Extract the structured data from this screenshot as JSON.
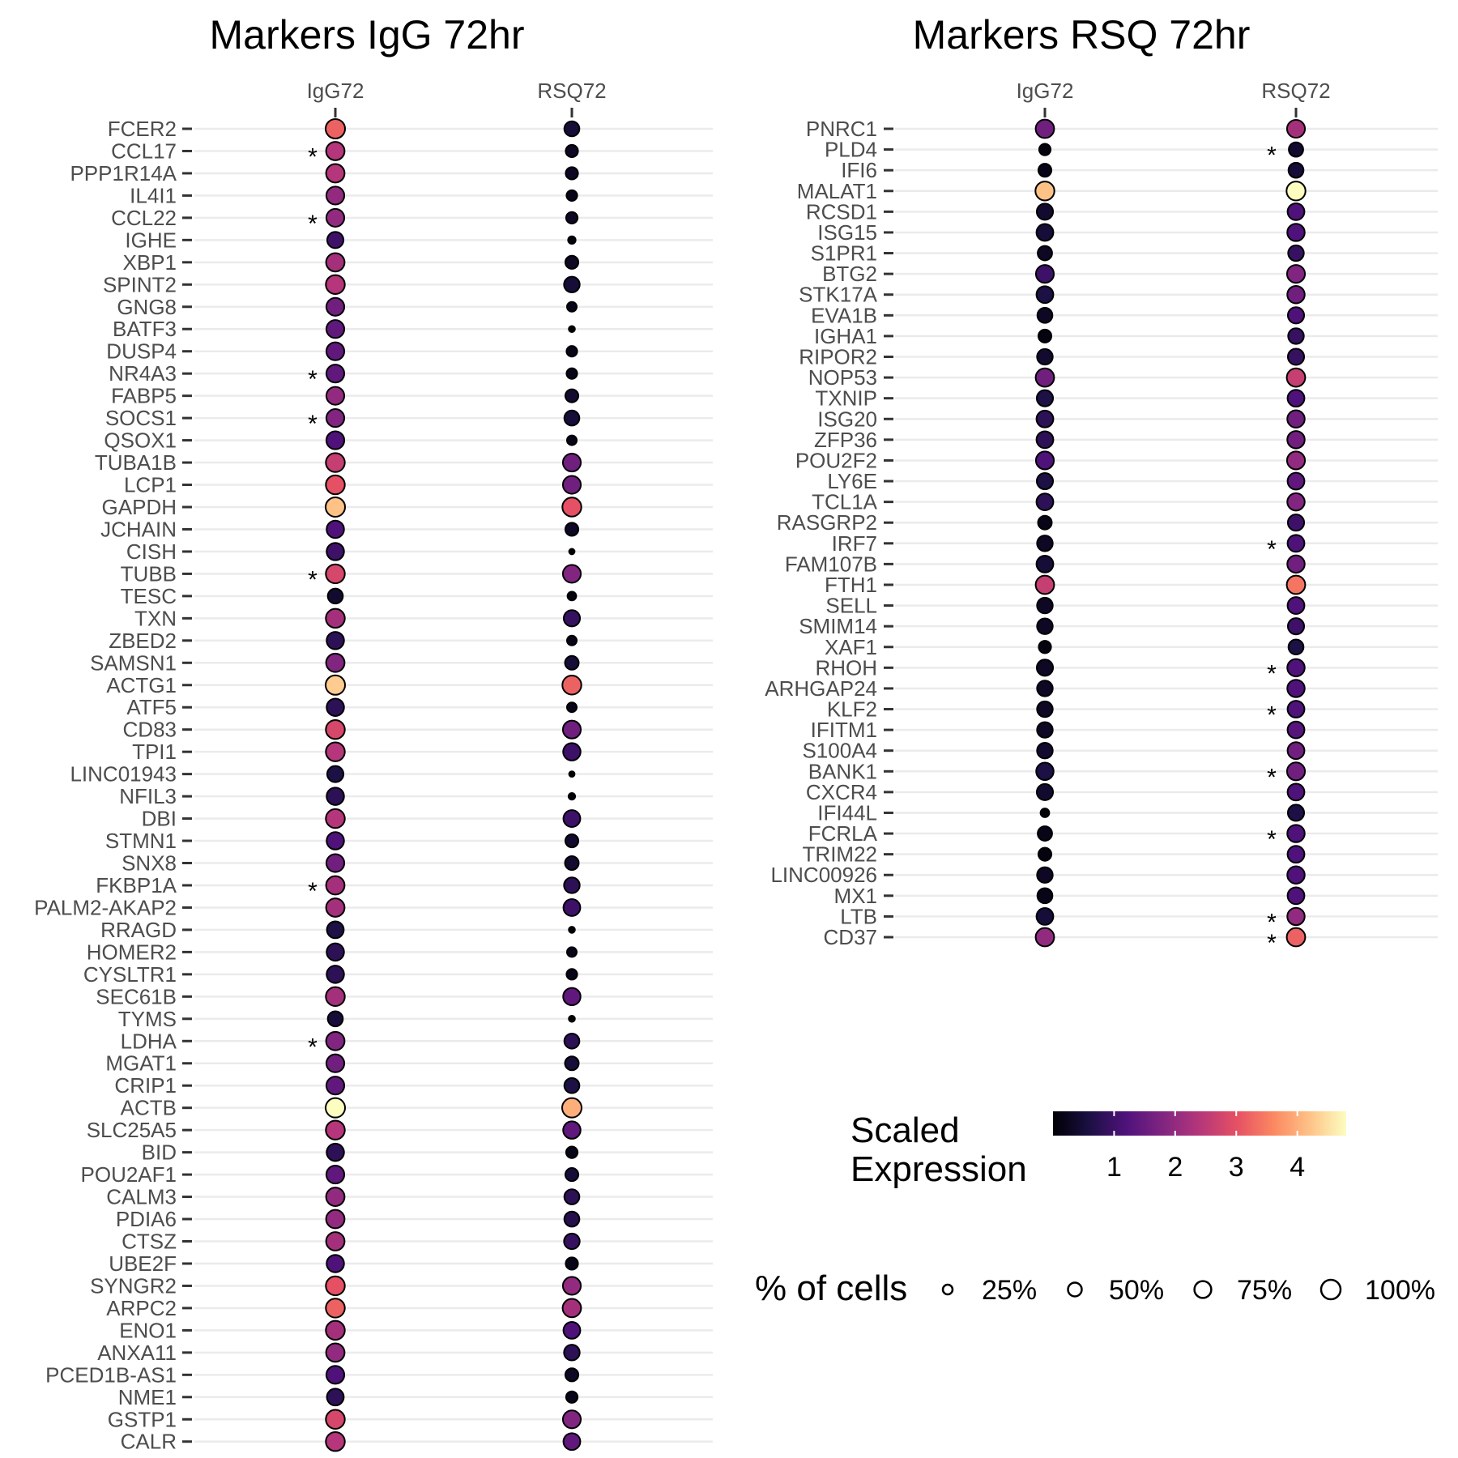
{
  "legend": {
    "color_title_line1": "Scaled",
    "color_title_line2": "Expression",
    "color_ticks": [
      1,
      2,
      3,
      4
    ],
    "color_range": [
      0,
      4.8
    ],
    "size_title": "% of cells",
    "size_labels": [
      "25%",
      "50%",
      "75%",
      "100%"
    ],
    "size_values": [
      25,
      50,
      75,
      100
    ],
    "palette": [
      "#000004",
      "#1c1044",
      "#4f127b",
      "#812581",
      "#b5367a",
      "#e55064",
      "#fb8761",
      "#fec287",
      "#fcfdbf"
    ]
  },
  "chart_data": [
    {
      "type": "dotplot",
      "title": "Markers IgG 72hr",
      "columns": [
        "IgG72",
        "RSQ72"
      ],
      "genes": [
        "FCER2",
        "CCL17",
        "PPP1R14A",
        "IL4I1",
        "CCL22",
        "IGHE",
        "XBP1",
        "SPINT2",
        "GNG8",
        "BATF3",
        "DUSP4",
        "NR4A3",
        "FABP5",
        "SOCS1",
        "QSOX1",
        "TUBA1B",
        "LCP1",
        "GAPDH",
        "JCHAIN",
        "CISH",
        "TUBB",
        "TESC",
        "TXN",
        "ZBED2",
        "SAMSN1",
        "ACTG1",
        "ATF5",
        "CD83",
        "TPI1",
        "LINC01943",
        "NFIL3",
        "DBI",
        "STMN1",
        "SNX8",
        "FKBP1A",
        "PALM2-AKAP2",
        "RRAGD",
        "HOMER2",
        "CYSLTR1",
        "SEC61B",
        "TYMS",
        "LDHA",
        "MGAT1",
        "CRIP1",
        "ACTB",
        "SLC25A5",
        "BID",
        "POU2AF1",
        "CALM3",
        "PDIA6",
        "CTSZ",
        "UBE2F",
        "SYNGR2",
        "ARPC2",
        "ENO1",
        "ANXA11",
        "PCED1B-AS1",
        "NME1",
        "GSTP1",
        "CALR"
      ],
      "expression": [
        [
          3.2,
          0.5
        ],
        [
          2.4,
          0.3
        ],
        [
          2.4,
          0.3
        ],
        [
          2.0,
          0.2
        ],
        [
          2.0,
          0.3
        ],
        [
          1.0,
          0.1
        ],
        [
          2.2,
          0.3
        ],
        [
          2.4,
          0.5
        ],
        [
          1.6,
          0.2
        ],
        [
          1.4,
          0.05
        ],
        [
          1.4,
          0.2
        ],
        [
          1.4,
          0.2
        ],
        [
          2.0,
          0.4
        ],
        [
          1.8,
          0.5
        ],
        [
          1.2,
          0.2
        ],
        [
          2.6,
          1.6
        ],
        [
          3.0,
          1.6
        ],
        [
          4.2,
          3.0
        ],
        [
          1.2,
          0.3
        ],
        [
          1.0,
          0.05
        ],
        [
          2.8,
          1.8
        ],
        [
          0.4,
          0.1
        ],
        [
          2.2,
          0.9
        ],
        [
          0.8,
          0.2
        ],
        [
          1.8,
          0.5
        ],
        [
          4.3,
          3.2
        ],
        [
          0.8,
          0.2
        ],
        [
          2.8,
          1.6
        ],
        [
          2.4,
          1.0
        ],
        [
          0.6,
          0.05
        ],
        [
          0.8,
          0.05
        ],
        [
          2.4,
          1.0
        ],
        [
          1.2,
          0.4
        ],
        [
          1.6,
          0.4
        ],
        [
          2.2,
          0.8
        ],
        [
          2.2,
          1.0
        ],
        [
          0.6,
          0.05
        ],
        [
          0.8,
          0.2
        ],
        [
          0.8,
          0.2
        ],
        [
          2.2,
          1.4
        ],
        [
          0.5,
          0.05
        ],
        [
          1.8,
          0.8
        ],
        [
          1.6,
          0.5
        ],
        [
          1.4,
          0.6
        ],
        [
          4.8,
          4.0
        ],
        [
          2.4,
          1.4
        ],
        [
          0.8,
          0.2
        ],
        [
          1.4,
          0.5
        ],
        [
          2.0,
          0.8
        ],
        [
          2.0,
          0.7
        ],
        [
          2.2,
          0.9
        ],
        [
          1.2,
          0.2
        ],
        [
          3.0,
          2.0
        ],
        [
          3.2,
          2.2
        ],
        [
          2.2,
          1.2
        ],
        [
          2.0,
          0.8
        ],
        [
          1.2,
          0.3
        ],
        [
          0.8,
          0.2
        ],
        [
          2.8,
          1.8
        ],
        [
          2.4,
          1.4
        ]
      ],
      "percent": [
        [
          100,
          60
        ],
        [
          90,
          40
        ],
        [
          90,
          40
        ],
        [
          85,
          30
        ],
        [
          85,
          35
        ],
        [
          70,
          15
        ],
        [
          90,
          45
        ],
        [
          95,
          65
        ],
        [
          85,
          25
        ],
        [
          85,
          10
        ],
        [
          85,
          30
        ],
        [
          85,
          30
        ],
        [
          85,
          45
        ],
        [
          85,
          60
        ],
        [
          85,
          25
        ],
        [
          95,
          85
        ],
        [
          95,
          85
        ],
        [
          100,
          95
        ],
        [
          80,
          45
        ],
        [
          80,
          8
        ],
        [
          95,
          85
        ],
        [
          60,
          20
        ],
        [
          95,
          70
        ],
        [
          80,
          25
        ],
        [
          90,
          50
        ],
        [
          100,
          95
        ],
        [
          80,
          25
        ],
        [
          95,
          85
        ],
        [
          95,
          80
        ],
        [
          70,
          8
        ],
        [
          80,
          12
        ],
        [
          95,
          75
        ],
        [
          80,
          45
        ],
        [
          85,
          50
        ],
        [
          90,
          65
        ],
        [
          90,
          75
        ],
        [
          75,
          10
        ],
        [
          80,
          25
        ],
        [
          80,
          30
        ],
        [
          95,
          80
        ],
        [
          60,
          10
        ],
        [
          90,
          60
        ],
        [
          85,
          50
        ],
        [
          85,
          60
        ],
        [
          100,
          100
        ],
        [
          95,
          80
        ],
        [
          80,
          35
        ],
        [
          85,
          45
        ],
        [
          90,
          60
        ],
        [
          90,
          60
        ],
        [
          90,
          65
        ],
        [
          80,
          40
        ],
        [
          95,
          85
        ],
        [
          95,
          90
        ],
        [
          95,
          75
        ],
        [
          90,
          65
        ],
        [
          85,
          45
        ],
        [
          75,
          35
        ],
        [
          95,
          85
        ],
        [
          95,
          75
        ]
      ],
      "significant": [
        [
          false,
          false
        ],
        [
          true,
          false
        ],
        [
          false,
          false
        ],
        [
          false,
          false
        ],
        [
          true,
          false
        ],
        [
          false,
          false
        ],
        [
          false,
          false
        ],
        [
          false,
          false
        ],
        [
          false,
          false
        ],
        [
          false,
          false
        ],
        [
          false,
          false
        ],
        [
          true,
          false
        ],
        [
          false,
          false
        ],
        [
          true,
          false
        ],
        [
          false,
          false
        ],
        [
          false,
          false
        ],
        [
          false,
          false
        ],
        [
          false,
          false
        ],
        [
          false,
          false
        ],
        [
          false,
          false
        ],
        [
          true,
          false
        ],
        [
          false,
          false
        ],
        [
          false,
          false
        ],
        [
          false,
          false
        ],
        [
          false,
          false
        ],
        [
          false,
          false
        ],
        [
          false,
          false
        ],
        [
          false,
          false
        ],
        [
          false,
          false
        ],
        [
          false,
          false
        ],
        [
          false,
          false
        ],
        [
          false,
          false
        ],
        [
          false,
          false
        ],
        [
          false,
          false
        ],
        [
          true,
          false
        ],
        [
          false,
          false
        ],
        [
          false,
          false
        ],
        [
          false,
          false
        ],
        [
          false,
          false
        ],
        [
          false,
          false
        ],
        [
          false,
          false
        ],
        [
          true,
          false
        ],
        [
          false,
          false
        ],
        [
          false,
          false
        ],
        [
          false,
          false
        ],
        [
          false,
          false
        ],
        [
          false,
          false
        ],
        [
          false,
          false
        ],
        [
          false,
          false
        ],
        [
          false,
          false
        ],
        [
          false,
          false
        ],
        [
          false,
          false
        ],
        [
          false,
          false
        ],
        [
          false,
          false
        ],
        [
          false,
          false
        ],
        [
          false,
          false
        ],
        [
          false,
          false
        ],
        [
          false,
          false
        ],
        [
          false,
          false
        ],
        [
          false,
          false
        ]
      ]
    },
    {
      "type": "dotplot",
      "title": "Markers RSQ 72hr",
      "columns": [
        "IgG72",
        "RSQ72"
      ],
      "genes": [
        "PNRC1",
        "PLD4",
        "IFI6",
        "MALAT1",
        "RCSD1",
        "ISG15",
        "S1PR1",
        "BTG2",
        "STK17A",
        "EVA1B",
        "IGHA1",
        "RIPOR2",
        "NOP53",
        "TXNIP",
        "ISG20",
        "ZFP36",
        "POU2F2",
        "LY6E",
        "TCL1A",
        "RASGRP2",
        "IRF7",
        "FAM107B",
        "FTH1",
        "SELL",
        "SMIM14",
        "XAF1",
        "RHOH",
        "ARHGAP24",
        "KLF2",
        "IFITM1",
        "S100A4",
        "BANK1",
        "CXCR4",
        "IFI44L",
        "FCRLA",
        "TRIM22",
        "LINC00926",
        "MX1",
        "LTB",
        "CD37"
      ],
      "expression": [
        [
          1.6,
          2.2
        ],
        [
          0.1,
          0.4
        ],
        [
          0.2,
          0.5
        ],
        [
          4.2,
          4.8
        ],
        [
          0.4,
          1.2
        ],
        [
          0.5,
          1.2
        ],
        [
          0.3,
          0.9
        ],
        [
          1.0,
          1.8
        ],
        [
          0.6,
          1.6
        ],
        [
          0.3,
          1.2
        ],
        [
          0.1,
          0.9
        ],
        [
          0.4,
          0.9
        ],
        [
          1.6,
          2.6
        ],
        [
          0.6,
          1.2
        ],
        [
          0.8,
          1.6
        ],
        [
          0.8,
          1.6
        ],
        [
          1.2,
          2.0
        ],
        [
          0.6,
          1.4
        ],
        [
          0.8,
          1.8
        ],
        [
          0.2,
          1.0
        ],
        [
          0.3,
          1.2
        ],
        [
          0.5,
          1.6
        ],
        [
          2.6,
          3.4
        ],
        [
          0.3,
          1.2
        ],
        [
          0.3,
          1.0
        ],
        [
          0.1,
          0.6
        ],
        [
          0.3,
          1.2
        ],
        [
          0.3,
          1.2
        ],
        [
          0.3,
          1.2
        ],
        [
          0.3,
          1.3
        ],
        [
          0.4,
          1.6
        ],
        [
          0.6,
          1.6
        ],
        [
          0.4,
          1.2
        ],
        [
          0.05,
          0.6
        ],
        [
          0.2,
          1.2
        ],
        [
          0.1,
          1.2
        ],
        [
          0.3,
          1.2
        ],
        [
          0.2,
          1.2
        ],
        [
          0.5,
          2.0
        ],
        [
          2.0,
          3.2
        ]
      ],
      "percent": [
        [
          90,
          85
        ],
        [
          35,
          55
        ],
        [
          45,
          60
        ],
        [
          95,
          95
        ],
        [
          70,
          75
        ],
        [
          75,
          80
        ],
        [
          55,
          65
        ],
        [
          85,
          85
        ],
        [
          75,
          80
        ],
        [
          60,
          70
        ],
        [
          45,
          65
        ],
        [
          65,
          70
        ],
        [
          90,
          90
        ],
        [
          70,
          75
        ],
        [
          75,
          80
        ],
        [
          75,
          80
        ],
        [
          85,
          85
        ],
        [
          70,
          75
        ],
        [
          75,
          80
        ],
        [
          50,
          70
        ],
        [
          65,
          75
        ],
        [
          75,
          80
        ],
        [
          90,
          90
        ],
        [
          65,
          75
        ],
        [
          65,
          70
        ],
        [
          40,
          60
        ],
        [
          70,
          80
        ],
        [
          65,
          80
        ],
        [
          65,
          75
        ],
        [
          65,
          75
        ],
        [
          65,
          75
        ],
        [
          80,
          85
        ],
        [
          70,
          75
        ],
        [
          20,
          70
        ],
        [
          55,
          80
        ],
        [
          45,
          75
        ],
        [
          65,
          80
        ],
        [
          60,
          75
        ],
        [
          75,
          80
        ],
        [
          90,
          90
        ]
      ],
      "significant": [
        [
          false,
          false
        ],
        [
          false,
          true
        ],
        [
          false,
          false
        ],
        [
          false,
          false
        ],
        [
          false,
          false
        ],
        [
          false,
          false
        ],
        [
          false,
          false
        ],
        [
          false,
          false
        ],
        [
          false,
          false
        ],
        [
          false,
          false
        ],
        [
          false,
          false
        ],
        [
          false,
          false
        ],
        [
          false,
          false
        ],
        [
          false,
          false
        ],
        [
          false,
          false
        ],
        [
          false,
          false
        ],
        [
          false,
          false
        ],
        [
          false,
          false
        ],
        [
          false,
          false
        ],
        [
          false,
          false
        ],
        [
          false,
          true
        ],
        [
          false,
          false
        ],
        [
          false,
          false
        ],
        [
          false,
          false
        ],
        [
          false,
          false
        ],
        [
          false,
          false
        ],
        [
          false,
          true
        ],
        [
          false,
          false
        ],
        [
          false,
          true
        ],
        [
          false,
          false
        ],
        [
          false,
          false
        ],
        [
          false,
          true
        ],
        [
          false,
          false
        ],
        [
          false,
          false
        ],
        [
          false,
          true
        ],
        [
          false,
          false
        ],
        [
          false,
          false
        ],
        [
          false,
          false
        ],
        [
          false,
          true
        ],
        [
          false,
          true
        ]
      ]
    }
  ]
}
